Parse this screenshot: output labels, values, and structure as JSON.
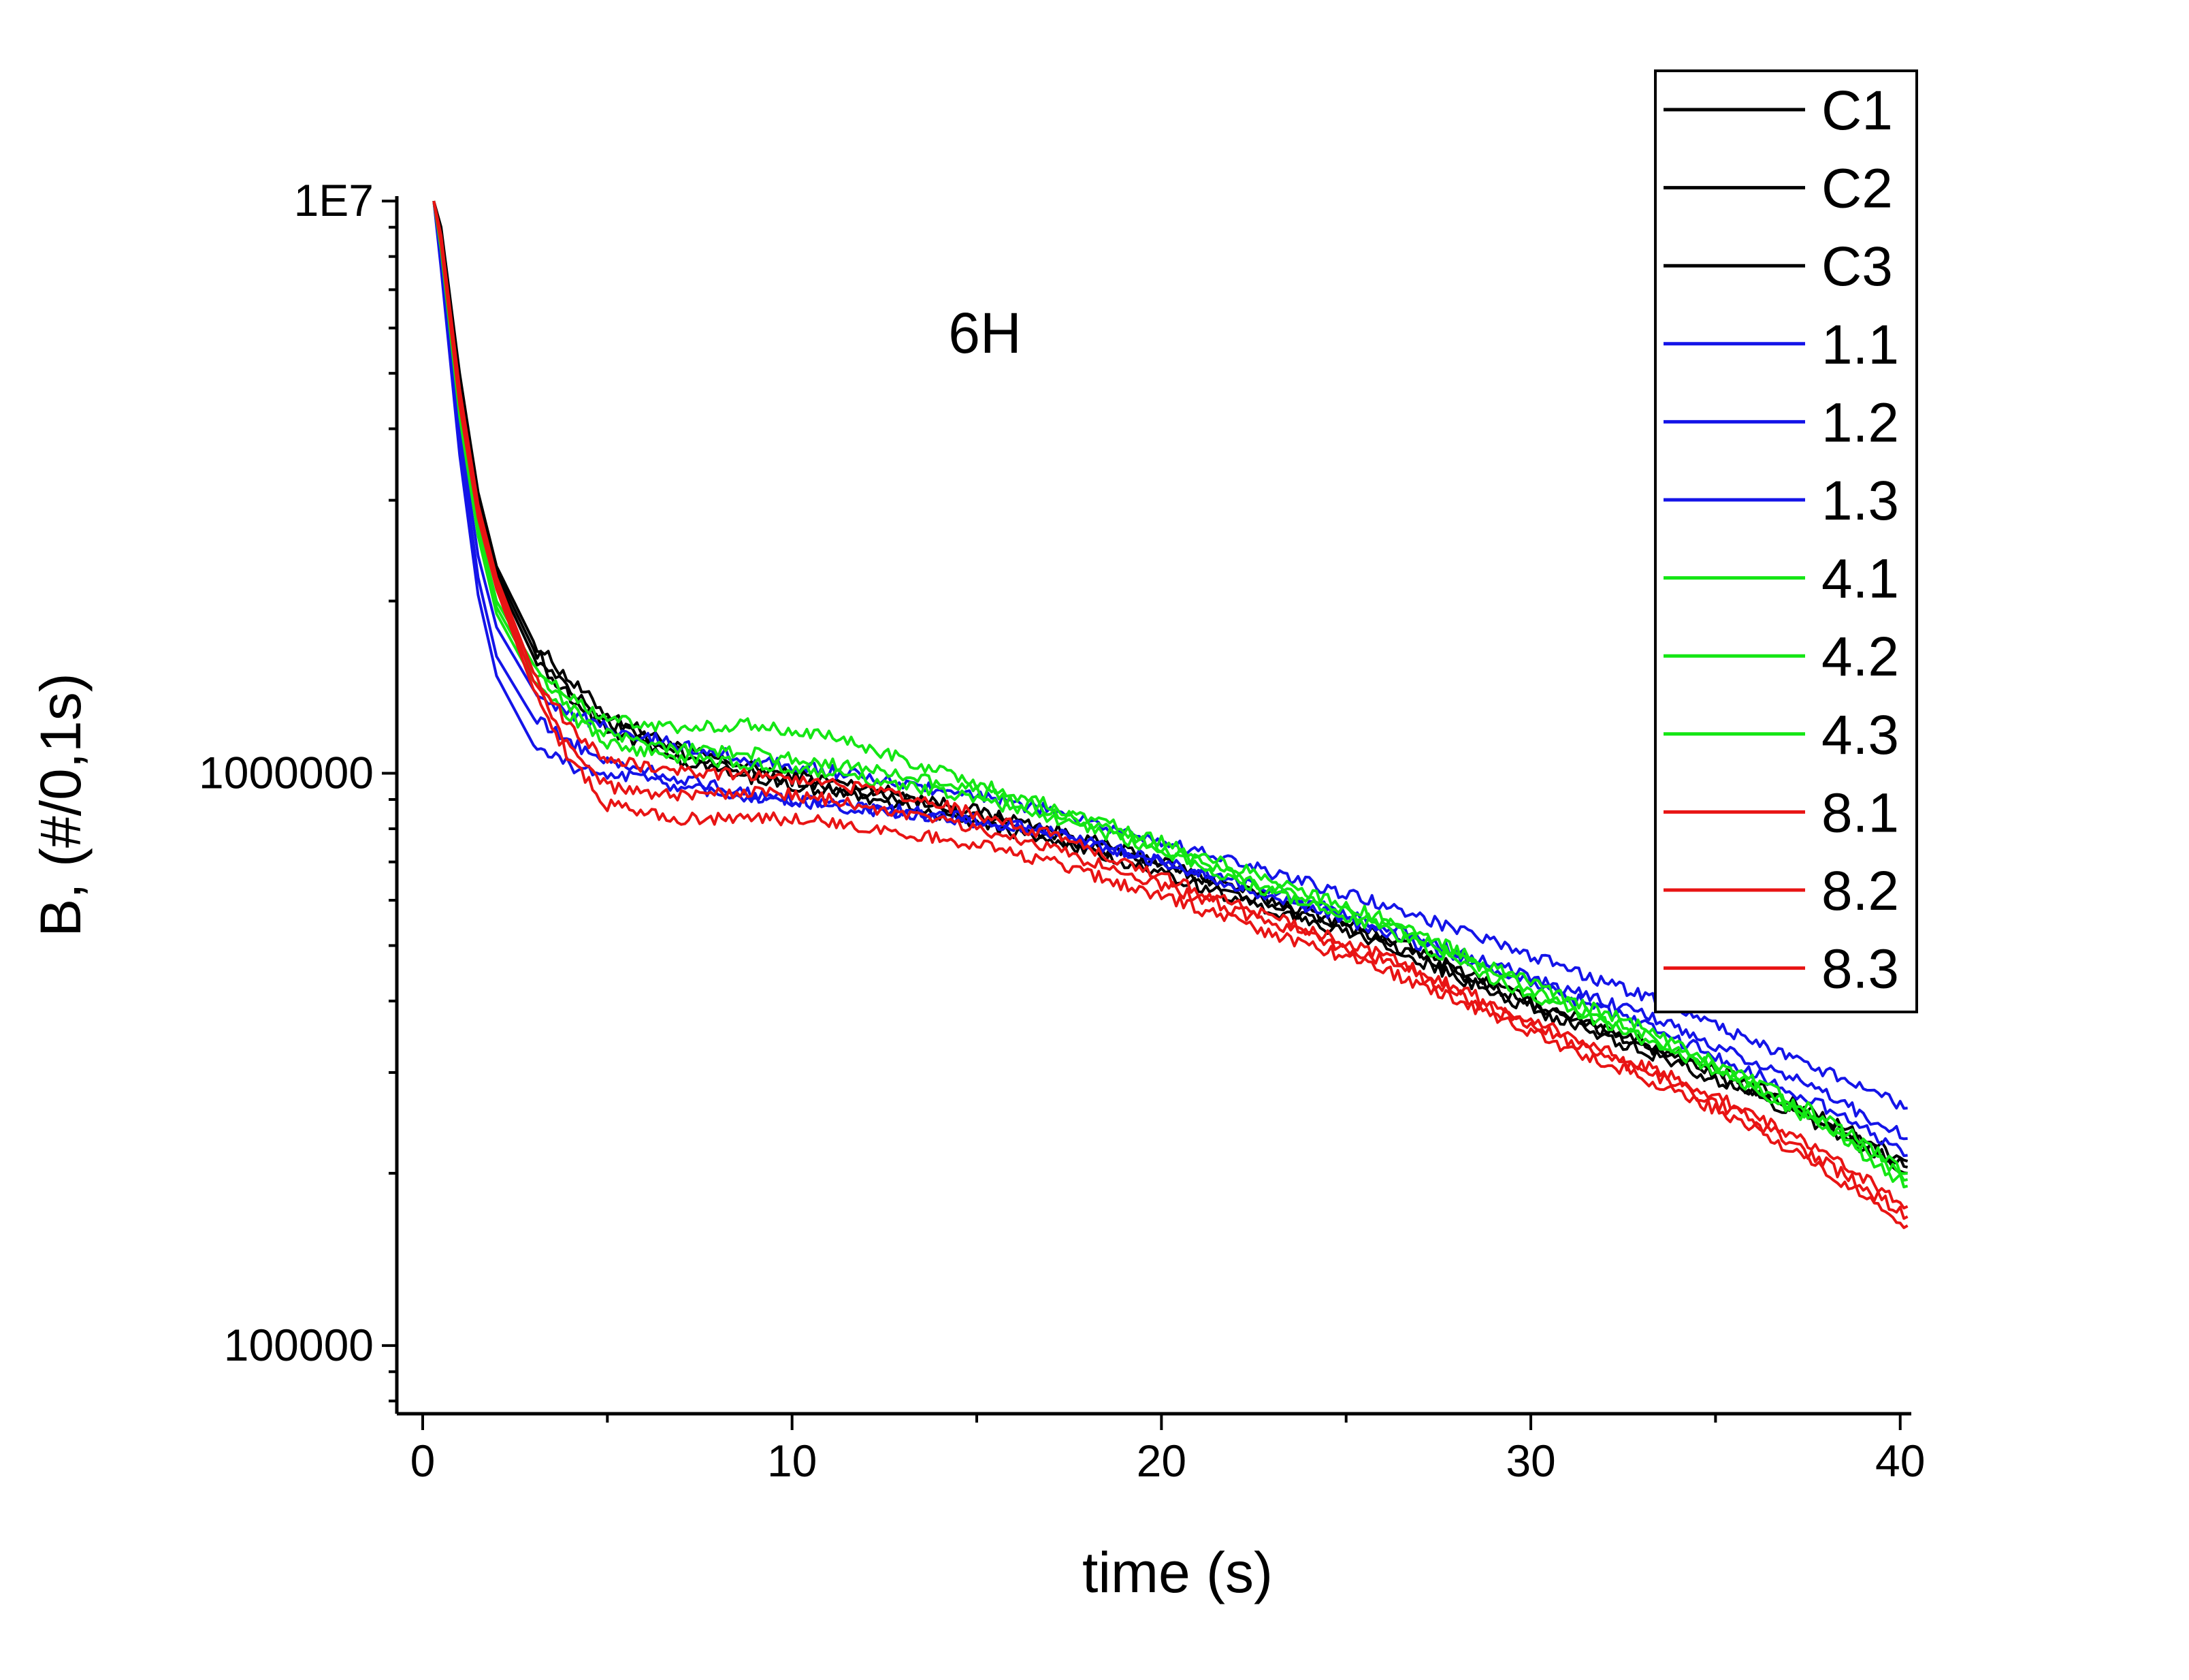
{
  "chart_data": {
    "type": "line",
    "title": "",
    "annotation": "6H",
    "xlabel": "time (s)",
    "ylabel": "B, (#/0,1s)",
    "xlim": [
      -0.7,
      40.3
    ],
    "ylim": [
      76000,
      10200000
    ],
    "y_scale": "log",
    "x_ticks": [
      0,
      10,
      20,
      30,
      40
    ],
    "x_tick_labels": [
      "0",
      "10",
      "20",
      "30",
      "40"
    ],
    "y_ticks": [
      100000,
      1000000,
      10000000
    ],
    "y_tick_labels": [
      "100000",
      "1000000",
      "1E7"
    ],
    "grid": false,
    "legend_position": "top-right",
    "colors": {
      "C": "#000000",
      "1": "#1414e8",
      "4": "#14e614",
      "8": "#e81414"
    },
    "x": [
      0.3,
      0.5,
      1,
      1.5,
      2,
      3,
      4,
      5,
      7,
      9,
      11,
      13,
      15,
      17,
      20,
      23,
      26,
      30,
      33,
      36,
      38,
      40.2
    ],
    "series": [
      {
        "name": "C1",
        "color": "#000000",
        "values": [
          10000000,
          9000000,
          5000000,
          3100000,
          2300000,
          1700000,
          1450000,
          1270000,
          1100000,
          1020000,
          970000,
          920000,
          860000,
          800000,
          700000,
          600000,
          520000,
          400000,
          340000,
          285000,
          250000,
          210000
        ]
      },
      {
        "name": "C2",
        "color": "#000000",
        "values": [
          10000000,
          8800000,
          4800000,
          3000000,
          2250000,
          1650000,
          1400000,
          1230000,
          1080000,
          1000000,
          950000,
          900000,
          840000,
          780000,
          690000,
          590000,
          510000,
          395000,
          335000,
          280000,
          245000,
          205000
        ]
      },
      {
        "name": "C3",
        "color": "#000000",
        "values": [
          10000000,
          8600000,
          4600000,
          2900000,
          2200000,
          1600000,
          1360000,
          1200000,
          1050000,
          980000,
          930000,
          880000,
          820000,
          760000,
          670000,
          575000,
          500000,
          388000,
          328000,
          275000,
          240000,
          200000
        ]
      },
      {
        "name": "1.1",
        "color": "#1414e8",
        "values": [
          10000000,
          8000000,
          4000000,
          2400000,
          1800000,
          1400000,
          1270000,
          1200000,
          1120000,
          1050000,
          1010000,
          960000,
          910000,
          860000,
          760000,
          670000,
          590000,
          480000,
          410000,
          340000,
          300000,
          260000
        ]
      },
      {
        "name": "1.2",
        "color": "#1414e8",
        "values": [
          10000000,
          7800000,
          3800000,
          2200000,
          1600000,
          1250000,
          1130000,
          1050000,
          980000,
          920000,
          880000,
          850000,
          820000,
          790000,
          700000,
          620000,
          540000,
          440000,
          380000,
          315000,
          275000,
          230000
        ]
      },
      {
        "name": "1.3",
        "color": "#1414e8",
        "values": [
          10000000,
          7600000,
          3600000,
          2050000,
          1480000,
          1120000,
          1030000,
          1000000,
          950000,
          910000,
          880000,
          860000,
          830000,
          790000,
          700000,
          610000,
          530000,
          430000,
          365000,
          300000,
          260000,
          215000
        ]
      },
      {
        "name": "4.1",
        "color": "#14e614",
        "values": [
          10000000,
          8400000,
          4400000,
          2700000,
          2000000,
          1550000,
          1350000,
          1240000,
          1200000,
          1220000,
          1160000,
          1060000,
          960000,
          880000,
          760000,
          650000,
          560000,
          430000,
          360000,
          290000,
          250000,
          200000
        ]
      },
      {
        "name": "4.2",
        "color": "#14e614",
        "values": [
          10000000,
          8300000,
          4300000,
          2650000,
          1950000,
          1500000,
          1300000,
          1180000,
          1100000,
          1080000,
          1040000,
          990000,
          930000,
          860000,
          740000,
          630000,
          545000,
          420000,
          350000,
          285000,
          245000,
          195000
        ]
      },
      {
        "name": "4.3",
        "color": "#14e614",
        "values": [
          10000000,
          8200000,
          4200000,
          2600000,
          1900000,
          1450000,
          1260000,
          1130000,
          1060000,
          1040000,
          1000000,
          950000,
          900000,
          840000,
          730000,
          620000,
          535000,
          410000,
          345000,
          280000,
          240000,
          190000
        ]
      },
      {
        "name": "8.1",
        "color": "#e81414",
        "values": [
          10000000,
          8700000,
          4700000,
          2950000,
          2200000,
          1500000,
          1200000,
          1050000,
          1010000,
          990000,
          960000,
          910000,
          850000,
          780000,
          660000,
          560000,
          480000,
          370000,
          310000,
          255000,
          215000,
          175000
        ]
      },
      {
        "name": "8.2",
        "color": "#e81414",
        "values": [
          10000000,
          8500000,
          4500000,
          2850000,
          2150000,
          1450000,
          1100000,
          950000,
          910000,
          930000,
          900000,
          850000,
          800000,
          740000,
          640000,
          545000,
          470000,
          362000,
          302000,
          248000,
          208000,
          168000
        ]
      },
      {
        "name": "8.3",
        "color": "#e81414",
        "values": [
          10000000,
          8400000,
          4400000,
          2800000,
          2100000,
          1400000,
          1050000,
          880000,
          830000,
          840000,
          820000,
          790000,
          750000,
          700000,
          610000,
          525000,
          455000,
          352000,
          295000,
          242000,
          202000,
          162000
        ]
      }
    ]
  }
}
